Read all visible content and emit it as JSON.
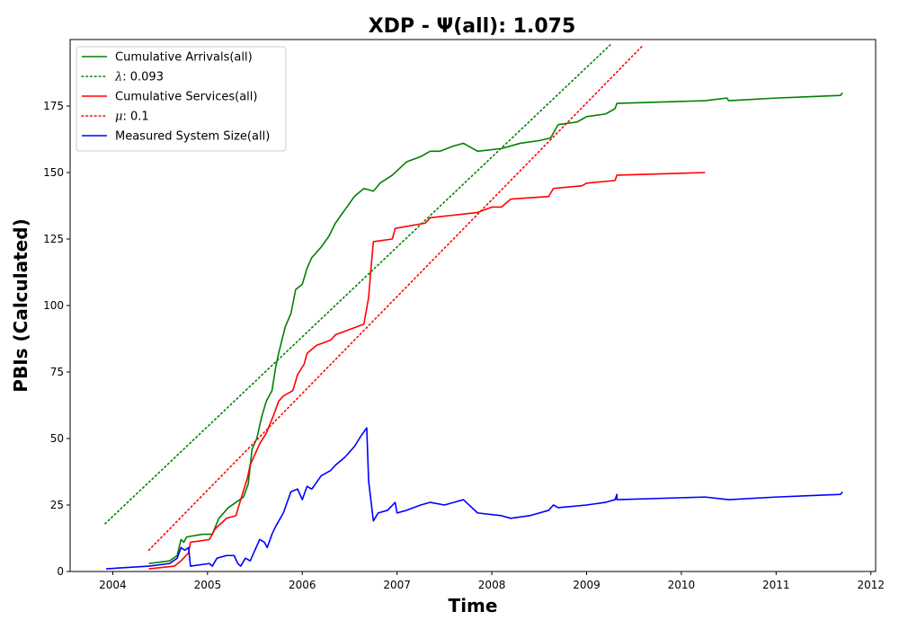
{
  "chart_data": {
    "type": "line",
    "title": "XDP -  Ψ(all): 1.075",
    "xlabel": "Time",
    "ylabel": "PBIs (Calculated)",
    "xlim": [
      2003.55,
      2012.05
    ],
    "ylim": [
      0,
      200
    ],
    "x_ticks": [
      2004,
      2005,
      2006,
      2007,
      2008,
      2009,
      2010,
      2011,
      2012
    ],
    "x_tick_labels": [
      "2004",
      "2005",
      "2006",
      "2007",
      "2008",
      "2009",
      "2010",
      "2011",
      "2012"
    ],
    "y_ticks": [
      0,
      25,
      50,
      75,
      100,
      125,
      150,
      175
    ],
    "y_tick_labels": [
      "0",
      "25",
      "50",
      "75",
      "100",
      "125",
      "150",
      "175"
    ],
    "grid": false,
    "legend_position": "top-left",
    "series": [
      {
        "name": "Cumulative Arrivals(all)",
        "color": "#008000",
        "style": "solid",
        "points": [
          [
            2004.38,
            3
          ],
          [
            2004.6,
            4
          ],
          [
            2004.68,
            6
          ],
          [
            2004.72,
            12
          ],
          [
            2004.75,
            11
          ],
          [
            2004.78,
            13
          ],
          [
            2004.95,
            14
          ],
          [
            2005.05,
            14
          ],
          [
            2005.12,
            20
          ],
          [
            2005.22,
            24
          ],
          [
            2005.3,
            26
          ],
          [
            2005.38,
            28
          ],
          [
            2005.43,
            33
          ],
          [
            2005.47,
            46
          ],
          [
            2005.52,
            50
          ],
          [
            2005.57,
            58
          ],
          [
            2005.62,
            64
          ],
          [
            2005.68,
            68
          ],
          [
            2005.72,
            77
          ],
          [
            2005.75,
            82
          ],
          [
            2005.82,
            92
          ],
          [
            2005.88,
            97
          ],
          [
            2005.93,
            106
          ],
          [
            2006.0,
            108
          ],
          [
            2006.05,
            114
          ],
          [
            2006.1,
            118
          ],
          [
            2006.2,
            122
          ],
          [
            2006.28,
            126
          ],
          [
            2006.35,
            131
          ],
          [
            2006.45,
            136
          ],
          [
            2006.55,
            141
          ],
          [
            2006.65,
            144
          ],
          [
            2006.75,
            143
          ],
          [
            2006.82,
            146
          ],
          [
            2006.95,
            149
          ],
          [
            2007.1,
            154
          ],
          [
            2007.25,
            156
          ],
          [
            2007.35,
            158
          ],
          [
            2007.45,
            158
          ],
          [
            2007.6,
            160
          ],
          [
            2007.7,
            161
          ],
          [
            2007.85,
            158
          ],
          [
            2008.1,
            159
          ],
          [
            2008.3,
            161
          ],
          [
            2008.5,
            162
          ],
          [
            2008.62,
            163
          ],
          [
            2008.7,
            168
          ],
          [
            2008.9,
            169
          ],
          [
            2009.0,
            171
          ],
          [
            2009.2,
            172
          ],
          [
            2009.3,
            174
          ],
          [
            2009.32,
            176
          ],
          [
            2010.25,
            177
          ],
          [
            2010.48,
            178
          ],
          [
            2010.5,
            177
          ],
          [
            2011.0,
            178
          ],
          [
            2011.68,
            179
          ],
          [
            2011.7,
            180
          ]
        ]
      },
      {
        "name": "λ: 0.093",
        "label_prefix": "λ",
        "label_value": ": 0.093",
        "color": "#008000",
        "style": "dotted",
        "points": [
          [
            2003.92,
            18
          ],
          [
            2009.25,
            198
          ]
        ]
      },
      {
        "name": "Cumulative Services(all)",
        "color": "#ff0000",
        "style": "solid",
        "points": [
          [
            2004.38,
            1
          ],
          [
            2004.65,
            2
          ],
          [
            2004.72,
            4
          ],
          [
            2004.8,
            7
          ],
          [
            2004.82,
            11
          ],
          [
            2005.02,
            12
          ],
          [
            2005.08,
            16
          ],
          [
            2005.2,
            20
          ],
          [
            2005.3,
            21
          ],
          [
            2005.35,
            27
          ],
          [
            2005.42,
            35
          ],
          [
            2005.45,
            40
          ],
          [
            2005.5,
            44
          ],
          [
            2005.55,
            48
          ],
          [
            2005.62,
            52
          ],
          [
            2005.7,
            59
          ],
          [
            2005.75,
            64
          ],
          [
            2005.8,
            66
          ],
          [
            2005.9,
            68
          ],
          [
            2005.95,
            74
          ],
          [
            2006.02,
            78
          ],
          [
            2006.05,
            82
          ],
          [
            2006.15,
            85
          ],
          [
            2006.3,
            87
          ],
          [
            2006.35,
            89
          ],
          [
            2006.5,
            91
          ],
          [
            2006.65,
            93
          ],
          [
            2006.7,
            103
          ],
          [
            2006.72,
            112
          ],
          [
            2006.75,
            124
          ],
          [
            2006.95,
            125
          ],
          [
            2006.98,
            129
          ],
          [
            2007.3,
            131
          ],
          [
            2007.35,
            133
          ],
          [
            2007.6,
            134
          ],
          [
            2007.85,
            135
          ],
          [
            2008.0,
            137
          ],
          [
            2008.1,
            137
          ],
          [
            2008.2,
            140
          ],
          [
            2008.6,
            141
          ],
          [
            2008.65,
            144
          ],
          [
            2008.95,
            145
          ],
          [
            2009.0,
            146
          ],
          [
            2009.3,
            147
          ],
          [
            2009.32,
            149
          ],
          [
            2010.25,
            150
          ]
        ]
      },
      {
        "name": "μ: 0.1",
        "label_prefix": "μ",
        "label_value": ": 0.1",
        "color": "#ff0000",
        "style": "dotted",
        "points": [
          [
            2004.38,
            8
          ],
          [
            2009.6,
            198
          ]
        ]
      },
      {
        "name": "Measured System Size(all)",
        "color": "#0000ff",
        "style": "solid",
        "points": [
          [
            2003.93,
            1
          ],
          [
            2004.38,
            2
          ],
          [
            2004.6,
            3
          ],
          [
            2004.68,
            5
          ],
          [
            2004.72,
            9
          ],
          [
            2004.76,
            8
          ],
          [
            2004.8,
            9
          ],
          [
            2004.82,
            2
          ],
          [
            2005.02,
            3
          ],
          [
            2005.05,
            2
          ],
          [
            2005.1,
            5
          ],
          [
            2005.2,
            6
          ],
          [
            2005.28,
            6
          ],
          [
            2005.32,
            3
          ],
          [
            2005.35,
            2
          ],
          [
            2005.4,
            5
          ],
          [
            2005.45,
            4
          ],
          [
            2005.5,
            8
          ],
          [
            2005.55,
            12
          ],
          [
            2005.6,
            11
          ],
          [
            2005.63,
            9
          ],
          [
            2005.68,
            14
          ],
          [
            2005.72,
            17
          ],
          [
            2005.8,
            22
          ],
          [
            2005.88,
            30
          ],
          [
            2005.95,
            31
          ],
          [
            2006.0,
            27
          ],
          [
            2006.05,
            32
          ],
          [
            2006.1,
            31
          ],
          [
            2006.2,
            36
          ],
          [
            2006.3,
            38
          ],
          [
            2006.35,
            40
          ],
          [
            2006.45,
            43
          ],
          [
            2006.55,
            47
          ],
          [
            2006.62,
            51
          ],
          [
            2006.68,
            54
          ],
          [
            2006.7,
            34
          ],
          [
            2006.72,
            28
          ],
          [
            2006.75,
            19
          ],
          [
            2006.8,
            22
          ],
          [
            2006.9,
            23
          ],
          [
            2006.98,
            26
          ],
          [
            2007.0,
            22
          ],
          [
            2007.1,
            23
          ],
          [
            2007.25,
            25
          ],
          [
            2007.35,
            26
          ],
          [
            2007.5,
            25
          ],
          [
            2007.7,
            27
          ],
          [
            2007.85,
            22
          ],
          [
            2008.1,
            21
          ],
          [
            2008.2,
            20
          ],
          [
            2008.4,
            21
          ],
          [
            2008.6,
            23
          ],
          [
            2008.65,
            25
          ],
          [
            2008.7,
            24
          ],
          [
            2009.0,
            25
          ],
          [
            2009.2,
            26
          ],
          [
            2009.3,
            27
          ],
          [
            2009.32,
            29
          ],
          [
            2009.32,
            27
          ],
          [
            2010.25,
            28
          ],
          [
            2010.5,
            27
          ],
          [
            2011.0,
            28
          ],
          [
            2011.68,
            29
          ],
          [
            2011.7,
            30
          ]
        ]
      }
    ]
  }
}
